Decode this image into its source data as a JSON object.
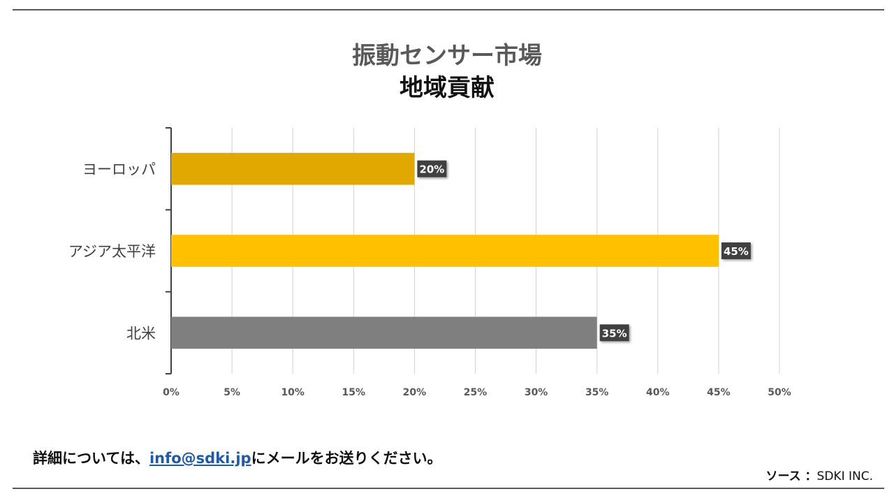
{
  "title": "振動センサー市場",
  "subtitle": "地域貢献",
  "chart_data": {
    "type": "bar",
    "orientation": "horizontal",
    "categories": [
      "ヨーロッパ",
      "アジア太平洋",
      "北米"
    ],
    "values": [
      20,
      45,
      35
    ],
    "data_labels": [
      "20%",
      "45%",
      "35%"
    ],
    "colors": [
      "#E0A800",
      "#FFC000",
      "#7F7F7F"
    ],
    "xlim": [
      0,
      50
    ],
    "xticks": [
      0,
      5,
      10,
      15,
      20,
      25,
      30,
      35,
      40,
      45,
      50
    ],
    "xtick_labels": [
      "0%",
      "5%",
      "10%",
      "15%",
      "20%",
      "25%",
      "30%",
      "35%",
      "40%",
      "45%",
      "50%"
    ],
    "grid": true,
    "legend": "none",
    "label_box_color": "#404040"
  },
  "footer": {
    "prefix": "詳細については、",
    "email": "info@sdki.jp",
    "suffix": "にメールをお送りください。"
  },
  "source": {
    "label": "ソース ：",
    "value": "SDKI INC."
  }
}
